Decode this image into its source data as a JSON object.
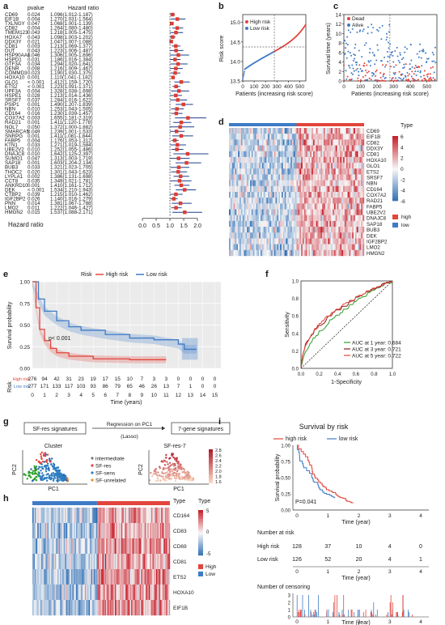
{
  "panel_labels": [
    "a",
    "b",
    "c",
    "d",
    "e",
    "f",
    "g",
    "h",
    "i"
  ],
  "colors": {
    "high": "#e2453c",
    "low": "#3f7bc6",
    "dark_blue": "#1f3f8c",
    "red_sq": "#e03b2f",
    "heat_high": "#c8202c",
    "heat_low": "#2b6cb3",
    "light": "#f6f6f6"
  },
  "panel_a": {
    "col_pvalue": "pvalue",
    "col_hr": "Hazard ratio",
    "xlabel": "Hazard ratio",
    "ticks": [
      "0.0",
      "0.5",
      "1.0",
      "1.5",
      "2.0"
    ],
    "rows": [
      {
        "gene": "CD69",
        "p": "0.024",
        "hr": "1.096(1.012-1.187)",
        "v": 1.096,
        "lo": 1.012,
        "hi": 1.187
      },
      {
        "gene": "EIF1B",
        "p": "0.004",
        "hr": "1.270(1.031-1.564)",
        "v": 1.27,
        "lo": 1.031,
        "hi": 1.564
      },
      {
        "gene": "TXLNGY",
        "p": "0.047",
        "hr": "1.068(1.001-1.139)",
        "v": 1.068,
        "lo": 1.001,
        "hi": 1.139
      },
      {
        "gene": "CD82",
        "p": "0.004",
        "hr": "1.264(1.080-1.480)",
        "v": 1.264,
        "lo": 1.08,
        "hi": 1.48
      },
      {
        "gene": "TMEM123",
        "p": "0.043",
        "hr": "1.218(1.005-1.475)",
        "v": 1.218,
        "lo": 1.005,
        "hi": 1.475
      },
      {
        "gene": "HOXA7",
        "p": "0.043",
        "hr": "1.098(1.003-1.202)",
        "v": 1.098,
        "lo": 1.003,
        "hi": 1.202
      },
      {
        "gene": "DDX3Y",
        "p": "0.021",
        "hr": "1.047(1.007-1.088)",
        "v": 1.047,
        "lo": 1.007,
        "hi": 1.088
      },
      {
        "gene": "CD81",
        "p": "0.003",
        "hr": "1.213(1.069-1.377)",
        "v": 1.213,
        "lo": 1.069,
        "hi": 1.377
      },
      {
        "gene": "DUT",
        "p": "0.043",
        "hr": "1.223(1.006-1.487)",
        "v": 1.223,
        "lo": 1.006,
        "hi": 1.487
      },
      {
        "gene": "HSP90AA1",
        "p": "0.046",
        "hr": "1.306(1.005-1.696)",
        "v": 1.306,
        "lo": 1.005,
        "hi": 1.696
      },
      {
        "gene": "HSPD1",
        "p": "0.031",
        "hr": "1.186(1.016-1.384)",
        "v": 1.186,
        "lo": 1.016,
        "hi": 1.384
      },
      {
        "gene": "GTF3A",
        "p": "0.034",
        "hr": "1.294(1.020-1.641)",
        "v": 1.294,
        "lo": 1.02,
        "hi": 1.641
      },
      {
        "gene": "DENR",
        "p": "0.008",
        "hr": "1.216(1.009-1.467)",
        "v": 1.216,
        "lo": 1.009,
        "hi": 1.467
      },
      {
        "gene": "COMMD3",
        "p": "0.023",
        "hr": "1.190(1.030-1.375)",
        "v": 1.19,
        "lo": 1.03,
        "hi": 1.375
      },
      {
        "gene": "HOXA10",
        "p": "0.001",
        "hr": "1.110(1.041-1.182)",
        "v": 1.11,
        "lo": 1.041,
        "hi": 1.182
      },
      {
        "gene": "GLO1",
        "p": "< 0.001",
        "hr": "1.412(1.159-1.720)",
        "v": 1.412,
        "lo": 1.159,
        "hi": 1.72
      },
      {
        "gene": "ETS2",
        "p": "< 0.001",
        "hr": "1.223(1.091-1.371)",
        "v": 1.223,
        "lo": 1.091,
        "hi": 1.371
      },
      {
        "gene": "UPF3A",
        "p": "0.004",
        "hr": "1.328(1.038-1.698)",
        "v": 1.328,
        "lo": 1.038,
        "hi": 1.698
      },
      {
        "gene": "HSPE1",
        "p": "0.028",
        "hr": "1.213(1.014-1.436)",
        "v": 1.213,
        "lo": 1.014,
        "hi": 1.436
      },
      {
        "gene": "SRSF7",
        "p": "0.037",
        "hr": "1.284(1.016-1.622)",
        "v": 1.284,
        "lo": 1.016,
        "hi": 1.622
      },
      {
        "gene": "PSIP1",
        "p": "0.001",
        "hr": "1.490(1.207-1.839)",
        "v": 1.49,
        "lo": 1.207,
        "hi": 1.839
      },
      {
        "gene": "NBN",
        "p": "0.010",
        "hr": "1.253(1.043-1.505)",
        "v": 1.253,
        "lo": 1.043,
        "hi": 1.505
      },
      {
        "gene": "CD164",
        "p": "0.016",
        "hr": "1.230(1.039-1.457)",
        "v": 1.23,
        "lo": 1.039,
        "hi": 1.457
      },
      {
        "gene": "COX7A2",
        "p": "0.003",
        "hr": "1.655(1.181-2.319)",
        "v": 1.655,
        "lo": 1.181,
        "hi": 2.319
      },
      {
        "gene": "RAD21",
        "p": "0.001",
        "hr": "1.411(1.120-1.778)",
        "v": 1.411,
        "lo": 1.12,
        "hi": 1.778
      },
      {
        "gene": "NOL7",
        "p": "0.050",
        "hr": "1.372(1.000-1.882)",
        "v": 1.372,
        "lo": 1.0,
        "hi": 1.882
      },
      {
        "gene": "SMARCA5",
        "p": "0.049",
        "hr": "1.239(1.001-1.533)",
        "v": 1.239,
        "lo": 1.001,
        "hi": 1.533
      },
      {
        "gene": "SNRPG",
        "p": "0.001",
        "hr": "1.411(1.081-1.844)",
        "v": 1.411,
        "lo": 1.081,
        "hi": 1.844
      },
      {
        "gene": "FABP5",
        "p": "0.004",
        "hr": "1.176(1.053-1.312)",
        "v": 1.176,
        "lo": 1.053,
        "hi": 1.312
      },
      {
        "gene": "KTN1",
        "p": "0.033",
        "hr": "1.271(1.019-1.584)",
        "v": 1.271,
        "lo": 1.019,
        "hi": 1.584
      },
      {
        "gene": "UBE2V2",
        "p": "0.010",
        "hr": "1.252(1.055-1.486)",
        "v": 1.252,
        "lo": 1.055,
        "hi": 1.486
      },
      {
        "gene": "DNAJC8",
        "p": "0.010",
        "hr": "1.642(1.125-2.397)",
        "v": 1.642,
        "lo": 1.125,
        "hi": 2.397
      },
      {
        "gene": "SUMO1",
        "p": "0.047",
        "hr": "1.313(1.003-1.719)",
        "v": 1.313,
        "lo": 1.003,
        "hi": 1.719
      },
      {
        "gene": "SAP18",
        "p": "0.001",
        "hr": "1.603(1.204-2.134)",
        "v": 1.603,
        "lo": 1.204,
        "hi": 2.134
      },
      {
        "gene": "BUB3",
        "p": "0.033",
        "hr": "1.321(1.023-1.705)",
        "v": 1.321,
        "lo": 1.023,
        "hi": 1.705
      },
      {
        "gene": "THOC2",
        "p": "0.020",
        "hr": "1.301(1.043-1.623)",
        "v": 1.301,
        "lo": 1.043,
        "hi": 1.623
      },
      {
        "gene": "LYPLA1",
        "p": "0.002",
        "hr": "1.386(1.131-1.698)",
        "v": 1.386,
        "lo": 1.131,
        "hi": 1.698
      },
      {
        "gene": "CCT8",
        "p": "0.035",
        "hr": "1.349(1.021-1.781)",
        "v": 1.349,
        "lo": 1.021,
        "hi": 1.781
      },
      {
        "gene": "ANKRD10",
        "p": "0.001",
        "hr": "1.410(1.161-1.712)",
        "v": 1.41,
        "lo": 1.161,
        "hi": 1.712
      },
      {
        "gene": "DEK",
        "p": "< 0.001",
        "hr": "1.534(1.210-1.943)",
        "v": 1.534,
        "lo": 1.21,
        "hi": 1.943
      },
      {
        "gene": "CTBP2",
        "p": "0.039",
        "hr": "1.215(1.010-1.462)",
        "v": 1.215,
        "lo": 1.01,
        "hi": 1.462
      },
      {
        "gene": "IGF2BP2",
        "p": "0.026",
        "hr": "1.140(1.016-1.279)",
        "v": 1.14,
        "lo": 1.016,
        "hi": 1.279
      },
      {
        "gene": "PNN",
        "p": "0.014",
        "hr": "1.381(1.067-1.788)",
        "v": 1.381,
        "lo": 1.067,
        "hi": 1.788
      },
      {
        "gene": "LMO2",
        "p": "0.011",
        "hr": "1.222(1.046-1.427)",
        "v": 1.222,
        "lo": 1.046,
        "hi": 1.427
      },
      {
        "gene": "HMGN2",
        "p": "0.015",
        "hr": "1.537(1.088-2.171)",
        "v": 1.537,
        "lo": 1.088,
        "hi": 2.171
      }
    ]
  },
  "panel_b": {
    "ylabel": "Risk score",
    "xlabel": "Patients (increasing risk score)",
    "legend": [
      "High risk",
      "Low risk"
    ],
    "yticks": [
      "13.5",
      "14.0",
      "14.5",
      "15.0"
    ],
    "xticks": [
      "0",
      "100",
      "200",
      "300",
      "400",
      "500"
    ]
  },
  "panel_c": {
    "ylabel": "Survival time (years)",
    "xlabel": "Patients (increasing risk score)",
    "legend": [
      "Dead",
      "Alive"
    ],
    "yticks": [
      "0",
      "2",
      "4",
      "6",
      "8",
      "10",
      "12",
      "14"
    ],
    "xticks": [
      "0",
      "100",
      "200",
      "300",
      "400",
      "500"
    ]
  },
  "panel_d": {
    "genes": [
      "CD69",
      "EIF1B",
      "CD82",
      "DDX3Y",
      "CD81",
      "HOXA10",
      "GLO1",
      "ETS2",
      "SRSF7",
      "NBN",
      "CD164",
      "COX7A2",
      "RAD21",
      "FABP5",
      "UBE2V2",
      "DNAJC8",
      "SAP18",
      "BUB3",
      "DEK",
      "IGF2BP2",
      "LMO2",
      "HMGN2"
    ],
    "type_title": "Type",
    "scale": [
      "6",
      "4",
      "2",
      "0",
      "-2",
      "-4",
      "-6"
    ],
    "legend": [
      "high",
      "low"
    ]
  },
  "panel_e": {
    "ylabel": "Survival probability",
    "xlabel": "Time (years)",
    "risk_title": "Risk",
    "legend_title": "Risk",
    "legend": [
      "High risk",
      "Low risk"
    ],
    "pvalue": "p< 0.001",
    "yticks": [
      "0.00",
      "0.25",
      "0.50",
      "0.75",
      "1.00"
    ],
    "xticks": [
      "0",
      "1",
      "2",
      "3",
      "4",
      "5",
      "6",
      "7",
      "8",
      "9",
      "10",
      "11",
      "12",
      "13",
      "14",
      "15"
    ],
    "table_rows": [
      {
        "label": "High risk",
        "vals": [
          "276",
          "94",
          "42",
          "31",
          "23",
          "19",
          "17",
          "15",
          "10",
          "7",
          "3",
          "3",
          "0",
          "0",
          "0",
          "0"
        ]
      },
      {
        "label": "Low risk",
        "vals": [
          "277",
          "171",
          "133",
          "117",
          "103",
          "93",
          "86",
          "79",
          "65",
          "46",
          "26",
          "13",
          "7",
          "1",
          "0",
          "0"
        ]
      }
    ]
  },
  "panel_f": {
    "ylabel": "Sensitivity",
    "xlabel": "1-Specificity",
    "ticks": [
      "0.0",
      "0.2",
      "0.4",
      "0.6",
      "0.8",
      "1.0"
    ],
    "legend": [
      "AUC  at 1 year: 0.684",
      "AUC  at 3 year: 0.721",
      "AUC  at 5 year: 0.722"
    ]
  },
  "panel_g": {
    "box1": "SF-res signatures",
    "arrow_text1": "Regression on PC1",
    "arrow_text2": "(Lasso)",
    "box2": "7-gene signatures",
    "cluster_title": "Cluster",
    "sfres_title": "SF-res-7",
    "legend": [
      "intermediate",
      "SF-res",
      "SF-sens",
      "SF-unrelated"
    ],
    "axis_pc1": "PC1",
    "axis_pc2": "PC2",
    "scale": [
      "2.8",
      "2.6",
      "2.4",
      "2.2",
      "2.0",
      "1.8",
      "1.6"
    ]
  },
  "panel_h": {
    "genes": [
      "CD164",
      "CD83",
      "CD69",
      "CD81",
      "ETS2",
      "HOXA10",
      "EIF1B"
    ],
    "type_title": "Type",
    "scale": [
      "5",
      "0",
      "-5"
    ],
    "legend": [
      "High",
      "Low"
    ]
  },
  "panel_i": {
    "title": "Survival by risk",
    "legend": [
      "high risk",
      "low risk"
    ],
    "ylabel": "Survival probability",
    "xlabel": "Time (year)",
    "pvalue": "P=0.041",
    "yticks": [
      "0.00",
      "0.25",
      "0.50",
      "0.75",
      "1.00"
    ],
    "xticks": [
      "0",
      "1",
      "2",
      "3",
      "4"
    ],
    "risk_title": "Number at risk",
    "risk_rows": [
      {
        "label": "High risk",
        "vals": [
          "128",
          "37",
          "10",
          "4",
          "0"
        ]
      },
      {
        "label": "Low risk",
        "vals": [
          "126",
          "52",
          "20",
          "4",
          "1"
        ]
      }
    ],
    "censor_title": "Number of censoring",
    "censor_yticks": [
      "0",
      "1",
      "2",
      "3"
    ]
  }
}
